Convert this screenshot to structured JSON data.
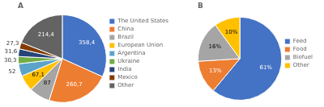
{
  "chart_data": [
    {
      "type": "pie",
      "title": "A",
      "categories": [
        "The United States",
        "China",
        "Brazil",
        "European Union",
        "Argentina",
        "Ukraine",
        "India",
        "Mexico",
        "Other"
      ],
      "values": [
        358.4,
        260.7,
        87,
        67.1,
        52,
        30.3,
        31.6,
        27.3,
        214.4
      ],
      "value_labels": [
        "358,4",
        "260,7",
        "87",
        "67,1",
        "52",
        "30,3",
        "31,6",
        "27,3",
        "214,4"
      ],
      "colors": [
        "#4472C4",
        "#ED7D31",
        "#A5A5A5",
        "#FFC000",
        "#5BA3C9",
        "#70AD47",
        "#264478",
        "#833C00",
        "#636363"
      ],
      "data_labels": true,
      "legend": "right"
    },
    {
      "type": "pie",
      "title": "B",
      "categories": [
        "Feed",
        "Food",
        "Biofuel",
        "Other"
      ],
      "values": [
        61,
        13,
        16,
        10
      ],
      "value_labels": [
        "61%",
        "13%",
        "16%",
        "10%"
      ],
      "colors": [
        "#4472C4",
        "#ED7D31",
        "#A5A5A5",
        "#FFC000"
      ],
      "data_labels": true,
      "legend": "right"
    }
  ]
}
